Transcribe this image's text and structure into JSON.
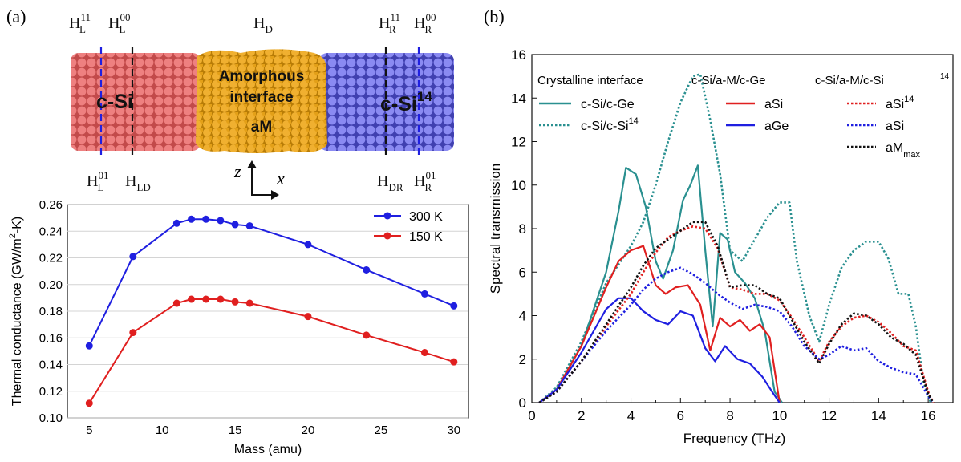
{
  "panel_a": {
    "label": "(a)",
    "schematic": {
      "label_HD": "H",
      "label_HD_sub": "D",
      "left_region": "c-Si",
      "right_region_base": "c-Si",
      "right_region_sup": "14",
      "interface_line1": "Amorphous",
      "interface_line2": "interface",
      "interface_line3": "aM",
      "axis_z": "z",
      "axis_x": "x",
      "colors": {
        "left": "#e06666",
        "middle": "#e8a317",
        "right": "#6a6ae0"
      },
      "top_labels": [
        {
          "base": "H",
          "sup": "11",
          "sub": "L"
        },
        {
          "base": "H",
          "sup": "00",
          "sub": "L"
        },
        {
          "base": "H",
          "sup": "11",
          "sub": "R"
        },
        {
          "base": "H",
          "sup": "00",
          "sub": "R"
        }
      ],
      "bottom_labels": [
        {
          "base": "H",
          "sup": "01",
          "sub": "L"
        },
        {
          "base": "H",
          "sup": "",
          "sub": "LD"
        },
        {
          "base": "H",
          "sup": "",
          "sub": "DR"
        },
        {
          "base": "H",
          "sup": "01",
          "sub": "R"
        }
      ]
    }
  },
  "panel_b": {
    "label": "(b)"
  },
  "chart_data": [
    {
      "type": "line",
      "xlabel": "Mass (amu)",
      "ylabel": "Thermal conductance (GW/m",
      "ylabel_sup": "2",
      "ylabel_end": "-K)",
      "xlim": [
        3.5,
        31
      ],
      "ylim": [
        0.1,
        0.26
      ],
      "xticks": [
        5,
        10,
        15,
        20,
        25,
        30
      ],
      "yticks": [
        "0.10",
        "0.12",
        "0.14",
        "0.16",
        "0.18",
        "0.20",
        "0.22",
        "0.24",
        "0.26"
      ],
      "legend_position": "top-right",
      "series": [
        {
          "name": "300 K",
          "color": "#1f1fe0",
          "x": [
            5,
            8,
            11,
            12,
            13,
            14,
            15,
            16,
            20,
            24,
            28,
            30
          ],
          "y": [
            0.154,
            0.221,
            0.246,
            0.249,
            0.249,
            0.248,
            0.245,
            0.244,
            0.23,
            0.211,
            0.193,
            0.184
          ]
        },
        {
          "name": "150 K",
          "color": "#e01f1f",
          "x": [
            5,
            8,
            11,
            12,
            13,
            14,
            15,
            16,
            20,
            24,
            28,
            30
          ],
          "y": [
            0.111,
            0.164,
            0.186,
            0.189,
            0.189,
            0.189,
            0.187,
            0.186,
            0.176,
            0.162,
            0.149,
            0.142
          ]
        }
      ]
    },
    {
      "type": "line",
      "xlabel": "Frequency (THz)",
      "ylabel": "Spectral transmission",
      "xlim": [
        0,
        17
      ],
      "ylim": [
        0,
        16
      ],
      "xticks": [
        0,
        2,
        4,
        6,
        8,
        10,
        12,
        14,
        16
      ],
      "yticks": [
        0,
        2,
        4,
        6,
        8,
        10,
        12,
        14,
        16
      ],
      "legend_headers": [
        "Crystalline interface",
        "c-Si/a-M/c-Ge",
        "c-Si/a-M/c-Si",
        "14"
      ],
      "series": [
        {
          "name": "c-Si/c-Ge",
          "name_sup": "",
          "color": "#2a9090",
          "style": "solid",
          "x": [
            0.3,
            1,
            2,
            3,
            3.5,
            3.8,
            4.2,
            4.6,
            5,
            5.3,
            5.7,
            6.1,
            6.4,
            6.7,
            7,
            7.3,
            7.6,
            7.9,
            8.2,
            8.6,
            9,
            9.4,
            9.8,
            10.1
          ],
          "y": [
            0,
            0.6,
            2.6,
            6.0,
            8.8,
            10.8,
            10.5,
            9.0,
            6.5,
            5.7,
            7.0,
            9.3,
            10.0,
            10.9,
            7.0,
            3.5,
            7.8,
            7.5,
            6.0,
            5.5,
            4.8,
            3.3,
            0.5,
            0
          ]
        },
        {
          "name": "c-Si/c-Si",
          "name_sup": "14",
          "color": "#2a9090",
          "style": "dotted",
          "x": [
            0.3,
            1,
            2,
            3,
            4,
            4.5,
            5,
            5.5,
            6,
            6.5,
            6.8,
            7.2,
            7.6,
            8,
            8.5,
            9,
            9.5,
            10,
            10.4,
            10.7,
            11.2,
            11.6,
            12,
            12.5,
            13,
            13.5,
            14,
            14.4,
            14.8,
            15.2,
            15.5,
            15.8,
            16.1
          ],
          "y": [
            0,
            0.7,
            2.8,
            5.5,
            7.2,
            8.3,
            10.0,
            12.0,
            13.8,
            15.0,
            15.1,
            13.0,
            10.5,
            7.0,
            6.5,
            7.5,
            8.5,
            9.2,
            9.2,
            6.5,
            4.0,
            2.8,
            4.5,
            6.2,
            7.0,
            7.4,
            7.4,
            6.6,
            5.0,
            5.0,
            3.5,
            1.0,
            0
          ]
        },
        {
          "name": "aSi",
          "name_sup": "",
          "color": "#e02020",
          "style": "solid",
          "x": [
            0.3,
            1,
            2,
            3,
            3.5,
            4,
            4.5,
            5,
            5.4,
            5.8,
            6.3,
            6.8,
            7.2,
            7.6,
            8,
            8.4,
            8.8,
            9.2,
            9.6,
            10
          ],
          "y": [
            0,
            0.6,
            2.6,
            5.3,
            6.5,
            7.0,
            7.2,
            5.4,
            5.0,
            5.3,
            5.4,
            4.5,
            2.4,
            3.9,
            3.5,
            3.8,
            3.3,
            3.6,
            3.0,
            0
          ]
        },
        {
          "name": "aGe",
          "name_sup": "",
          "color": "#1f1fe0",
          "style": "solid",
          "x": [
            0.3,
            1,
            2,
            3,
            3.5,
            4,
            4.5,
            5,
            5.5,
            6,
            6.5,
            7,
            7.4,
            7.8,
            8.3,
            8.8,
            9.3,
            9.7,
            10
          ],
          "y": [
            0,
            0.6,
            2.3,
            4.3,
            4.8,
            4.8,
            4.2,
            3.8,
            3.6,
            4.2,
            4.0,
            2.5,
            1.9,
            2.6,
            2.0,
            1.8,
            1.2,
            0.5,
            0
          ]
        },
        {
          "name": "aSi",
          "name_sup": "14",
          "color": "#e02020",
          "style": "dotted",
          "x": [
            0.3,
            1,
            2,
            3,
            4,
            4.5,
            5,
            5.5,
            6,
            6.5,
            7,
            7.5,
            8,
            8.5,
            9,
            9.5,
            10,
            10.5,
            11,
            11.6,
            12,
            12.5,
            13,
            13.5,
            14,
            14.5,
            15,
            15.5,
            16,
            16.2
          ],
          "y": [
            0,
            0.5,
            1.9,
            3.5,
            5.0,
            6.0,
            6.9,
            7.6,
            7.9,
            8.1,
            8.0,
            7.1,
            5.3,
            5.2,
            5.0,
            5.0,
            4.7,
            3.9,
            3.0,
            1.9,
            2.8,
            3.5,
            3.9,
            4.0,
            3.7,
            3.2,
            2.6,
            2.4,
            0.5,
            0
          ]
        },
        {
          "name": "aSi",
          "name_sup": "",
          "color": "#1f1fe0",
          "style": "dotted",
          "x": [
            0.3,
            1,
            2,
            3,
            4,
            4.5,
            5,
            5.5,
            6,
            6.5,
            7,
            7.5,
            8,
            8.5,
            9,
            9.5,
            10,
            10.5,
            11,
            11.6,
            12,
            12.5,
            13,
            13.5,
            14,
            14.5,
            15,
            15.5,
            16,
            16.2
          ],
          "y": [
            0,
            0.5,
            1.9,
            3.3,
            4.5,
            5.2,
            5.7,
            6.0,
            6.2,
            5.9,
            5.5,
            5.0,
            4.6,
            4.3,
            4.5,
            4.4,
            4.2,
            3.5,
            2.6,
            2.0,
            2.2,
            2.6,
            2.4,
            2.5,
            1.9,
            1.6,
            1.4,
            1.3,
            0.3,
            0
          ]
        },
        {
          "name": "aM",
          "name_sub": "max",
          "name_sup": "",
          "color": "#111111",
          "style": "dotted",
          "x": [
            0.3,
            1,
            2,
            3,
            4,
            4.5,
            5,
            5.5,
            6,
            6.5,
            7,
            7.5,
            8,
            8.5,
            9,
            9.5,
            10,
            10.5,
            11,
            11.6,
            12,
            12.5,
            13,
            13.5,
            14,
            14.5,
            15,
            15.5,
            16,
            16.2
          ],
          "y": [
            0,
            0.5,
            1.9,
            3.6,
            5.3,
            6.3,
            7.1,
            7.5,
            7.9,
            8.3,
            8.3,
            7.2,
            5.3,
            5.4,
            5.4,
            5.0,
            4.8,
            3.8,
            2.8,
            1.8,
            2.7,
            3.6,
            4.1,
            4.0,
            3.6,
            3.0,
            2.7,
            2.2,
            0.4,
            0
          ]
        }
      ]
    }
  ]
}
